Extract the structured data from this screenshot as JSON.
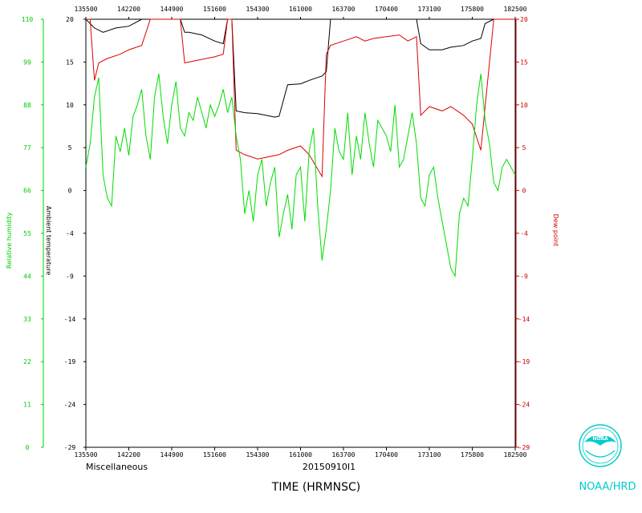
{
  "chart_data": {
    "type": "line",
    "x_ticks": [
      "135500",
      "142200",
      "144900",
      "151600",
      "154300",
      "161000",
      "163700",
      "170400",
      "173100",
      "175800",
      "182500"
    ],
    "top_x_ticks": [
      "135500",
      "142200",
      "144900",
      "151600",
      "154300",
      "161000",
      "163700",
      "170400",
      "173100",
      "175800",
      "182500"
    ],
    "xlabel": "TIME (HRMNSC)",
    "left_label": "Miscellaneous",
    "date_label": "20150910I1",
    "y_temp_ticks": [
      "20",
      "15",
      "10",
      "5",
      "0",
      "-4",
      "-9",
      "-14",
      "-19",
      "-24",
      "-29"
    ],
    "y_dew_ticks": [
      "20",
      "15",
      "10",
      "5",
      "0",
      "-4",
      "-9",
      "-14",
      "-19",
      "-24",
      "-29"
    ],
    "y_rh_ticks": [
      "110",
      "99",
      "88",
      "77",
      "66",
      "55",
      "44",
      "33",
      "22",
      "11",
      "0"
    ],
    "temp_axis_label": "Ambient temperature",
    "dew_axis_label": "Dew point",
    "rh_axis_label": "Relative humidity",
    "ylim_temp": [
      -29,
      20
    ],
    "ylim_rh": [
      0,
      110
    ],
    "series": [
      {
        "name": "Ambient temperature",
        "color": "#000000",
        "x": [
          0,
          0.02,
          0.04,
          0.07,
          0.1,
          0.13,
          0.15,
          0.17,
          0.2,
          0.22,
          0.23,
          0.24,
          0.27,
          0.3,
          0.32,
          0.33,
          0.34,
          0.35,
          0.37,
          0.4,
          0.42,
          0.44,
          0.45,
          0.47,
          0.5,
          0.52,
          0.55,
          0.56,
          0.57,
          0.6,
          0.63,
          0.65,
          0.67,
          0.7,
          0.73,
          0.75,
          0.77,
          0.78,
          0.8,
          0.83,
          0.85,
          0.88,
          0.9,
          0.92,
          0.93,
          0.95,
          1.0
        ],
        "y": [
          20,
          19,
          18.5,
          19,
          19.2,
          20,
          21,
          21,
          22,
          22,
          18.5,
          18.5,
          18.2,
          17.5,
          17.2,
          21,
          21,
          9.5,
          9.3,
          9.2,
          9.0,
          8.8,
          8.9,
          12.5,
          12.6,
          13,
          13.5,
          14,
          20.5,
          20.7,
          20.5,
          20.6,
          20.4,
          20.6,
          20.5,
          20.4,
          20.6,
          17.2,
          16.5,
          16.5,
          16.8,
          17.0,
          17.5,
          17.8,
          19.5,
          21,
          21
        ]
      },
      {
        "name": "Dew point",
        "color": "#dd0000",
        "x": [
          0,
          0.01,
          0.02,
          0.03,
          0.05,
          0.08,
          0.1,
          0.13,
          0.15,
          0.17,
          0.2,
          0.22,
          0.23,
          0.25,
          0.28,
          0.3,
          0.32,
          0.33,
          0.34,
          0.35,
          0.37,
          0.4,
          0.42,
          0.45,
          0.47,
          0.5,
          0.52,
          0.55,
          0.56,
          0.57,
          0.6,
          0.63,
          0.65,
          0.67,
          0.7,
          0.73,
          0.75,
          0.77,
          0.78,
          0.8,
          0.83,
          0.85,
          0.88,
          0.9,
          0.92,
          0.93,
          0.95,
          1.0
        ],
        "y": [
          20,
          20,
          13,
          15,
          15.5,
          16,
          16.5,
          17,
          20.5,
          21,
          21.5,
          21,
          15,
          15.2,
          15.5,
          15.7,
          16,
          21,
          21,
          5,
          4.5,
          4,
          4.2,
          4.5,
          5,
          5.5,
          4.5,
          2,
          16,
          17,
          17.5,
          18,
          17.5,
          17.8,
          18,
          18.2,
          17.5,
          18,
          9,
          10,
          9.5,
          10,
          9,
          8,
          5,
          10,
          21,
          20
        ]
      },
      {
        "name": "Relative humidity",
        "color": "#00dd00",
        "x": [
          0,
          0.01,
          0.02,
          0.03,
          0.04,
          0.05,
          0.06,
          0.07,
          0.08,
          0.09,
          0.1,
          0.11,
          0.12,
          0.13,
          0.14,
          0.15,
          0.16,
          0.17,
          0.18,
          0.19,
          0.2,
          0.21,
          0.22,
          0.23,
          0.24,
          0.25,
          0.26,
          0.27,
          0.28,
          0.29,
          0.3,
          0.31,
          0.32,
          0.33,
          0.34,
          0.35,
          0.36,
          0.37,
          0.38,
          0.39,
          0.4,
          0.41,
          0.42,
          0.43,
          0.44,
          0.45,
          0.46,
          0.47,
          0.48,
          0.49,
          0.5,
          0.51,
          0.52,
          0.53,
          0.54,
          0.55,
          0.56,
          0.57,
          0.58,
          0.59,
          0.6,
          0.61,
          0.62,
          0.63,
          0.64,
          0.65,
          0.66,
          0.67,
          0.68,
          0.69,
          0.7,
          0.71,
          0.72,
          0.73,
          0.74,
          0.75,
          0.76,
          0.77,
          0.78,
          0.79,
          0.8,
          0.81,
          0.82,
          0.83,
          0.84,
          0.85,
          0.86,
          0.87,
          0.88,
          0.89,
          0.9,
          0.91,
          0.92,
          0.93,
          0.94,
          0.95,
          0.96,
          0.97,
          0.98,
          0.99,
          1.0
        ],
        "y": [
          72,
          78,
          90,
          95,
          70,
          64,
          62,
          80,
          76,
          82,
          75,
          85,
          88,
          92,
          80,
          74,
          90,
          96,
          85,
          78,
          88,
          94,
          82,
          80,
          86,
          84,
          90,
          86,
          82,
          88,
          85,
          88,
          92,
          86,
          90,
          80,
          74,
          60,
          66,
          58,
          70,
          74,
          62,
          68,
          72,
          54,
          60,
          65,
          56,
          70,
          72,
          58,
          76,
          82,
          62,
          48,
          56,
          66,
          82,
          76,
          74,
          86,
          70,
          80,
          74,
          86,
          78,
          72,
          84,
          82,
          80,
          76,
          88,
          72,
          74,
          80,
          86,
          78,
          64,
          62,
          70,
          72,
          64,
          58,
          52,
          46,
          44,
          60,
          64,
          62,
          74,
          88,
          96,
          84,
          78,
          68,
          66,
          72,
          74,
          72,
          70
        ]
      }
    ]
  },
  "legend": {
    "brand_text": "NOAA/HRD",
    "logo_text": "NOAA"
  }
}
